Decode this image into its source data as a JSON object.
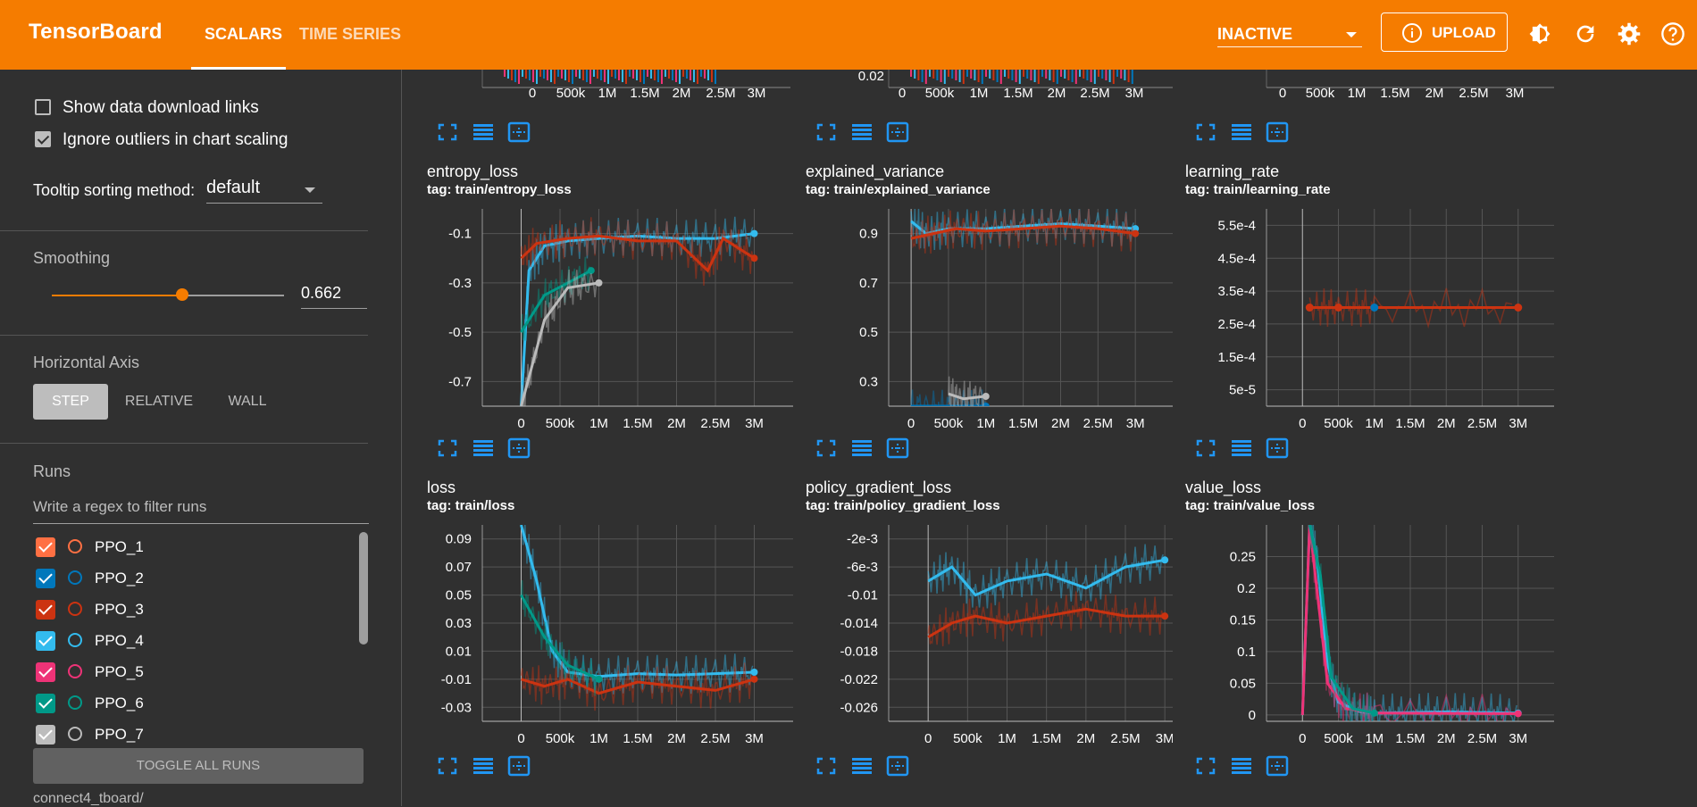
{
  "header": {
    "brand": "TensorBoard",
    "tabs": [
      {
        "label": "SCALARS",
        "active": true
      },
      {
        "label": "TIME SERIES",
        "active": false
      }
    ],
    "run_selector": "INACTIVE",
    "upload_label": "UPLOAD",
    "icons": [
      "upload-icon",
      "brightness-icon",
      "refresh-icon",
      "settings-icon",
      "help-icon"
    ],
    "accent": "#f57c00"
  },
  "sidebar": {
    "show_download_links": {
      "label": "Show data download links",
      "checked": false
    },
    "ignore_outliers": {
      "label": "Ignore outliers in chart scaling",
      "checked": true
    },
    "tooltip_sorting_label": "Tooltip sorting method:",
    "tooltip_sorting_value": "default",
    "smoothing_label": "Smoothing",
    "smoothing_value": "0.662",
    "horizontal_axis_label": "Horizontal Axis",
    "axis_options": [
      "STEP",
      "RELATIVE",
      "WALL"
    ],
    "axis_selected": "STEP",
    "runs_label": "Runs",
    "filter_placeholder": "Write a regex to filter runs",
    "runs": [
      {
        "name": "PPO_1",
        "color": "#ff7043",
        "checked": true
      },
      {
        "name": "PPO_2",
        "color": "#0077bb",
        "checked": true
      },
      {
        "name": "PPO_3",
        "color": "#cc3311",
        "checked": true
      },
      {
        "name": "PPO_4",
        "color": "#33bbee",
        "checked": true
      },
      {
        "name": "PPO_5",
        "color": "#ee3377",
        "checked": true
      },
      {
        "name": "PPO_6",
        "color": "#009988",
        "checked": true
      },
      {
        "name": "PPO_7",
        "color": "#bbbbbb",
        "checked": true
      }
    ],
    "toggle_all_label": "TOGGLE ALL RUNS",
    "logdir": "connect4_tboard/"
  },
  "top_row_partial": [
    {
      "xticks": [
        "0",
        "500k",
        "1M",
        "1.5M",
        "2M",
        "2.5M",
        "3M"
      ],
      "yticks": []
    },
    {
      "xticks": [
        "0",
        "500k",
        "1M",
        "1.5M",
        "2M",
        "2.5M",
        "3M"
      ],
      "yticks": [
        "0.02"
      ]
    },
    {
      "xticks": [
        "0",
        "500k",
        "1M",
        "1.5M",
        "2M",
        "2.5M",
        "3M"
      ],
      "yticks": []
    }
  ],
  "chart_data": [
    {
      "type": "line",
      "title": "entropy_loss",
      "subtitle": "tag: train/entropy_loss",
      "xticks": [
        "0",
        "500k",
        "1M",
        "1.5M",
        "2M",
        "2.5M",
        "3M"
      ],
      "xlim": [
        -500000,
        3500000
      ],
      "yticks": [
        "-0.1",
        "-0.3",
        "-0.5",
        "-0.7"
      ],
      "ytick_values": [
        -0.1,
        -0.3,
        -0.5,
        -0.7
      ],
      "ylim": [
        -0.8,
        0.0
      ],
      "series": [
        {
          "color": "#33bbee",
          "x": [
            0,
            100000,
            300000,
            600000,
            1000000,
            1500000,
            2000000,
            2500000,
            3000000
          ],
          "y": [
            -0.8,
            -0.25,
            -0.15,
            -0.13,
            -0.12,
            -0.11,
            -0.12,
            -0.12,
            -0.1
          ]
        },
        {
          "color": "#cc3311",
          "x": [
            0,
            200000,
            600000,
            1000000,
            1500000,
            2000000,
            2400000,
            2600000,
            3000000
          ],
          "y": [
            -0.2,
            -0.14,
            -0.12,
            -0.11,
            -0.13,
            -0.13,
            -0.25,
            -0.12,
            -0.2
          ]
        },
        {
          "color": "#009988",
          "x": [
            0,
            300000,
            600000,
            900000
          ],
          "y": [
            -0.5,
            -0.35,
            -0.3,
            -0.25
          ]
        },
        {
          "color": "#bbbbbb",
          "x": [
            0,
            300000,
            600000,
            1000000
          ],
          "y": [
            -0.8,
            -0.45,
            -0.32,
            -0.3
          ]
        }
      ]
    },
    {
      "type": "line",
      "title": "explained_variance",
      "subtitle": "tag: train/explained_variance",
      "xticks": [
        "0",
        "500k",
        "1M",
        "1.5M",
        "2M",
        "2.5M",
        "3M"
      ],
      "xlim": [
        -300000,
        3500000
      ],
      "yticks": [
        "0.9",
        "0.7",
        "0.5",
        "0.3"
      ],
      "ytick_values": [
        0.9,
        0.7,
        0.5,
        0.3
      ],
      "ylim": [
        0.2,
        1.0
      ],
      "series": [
        {
          "color": "#33bbee",
          "x": [
            0,
            200000,
            500000,
            1000000,
            1500000,
            2000000,
            2500000,
            3000000
          ],
          "y": [
            0.95,
            0.9,
            0.92,
            0.92,
            0.93,
            0.94,
            0.93,
            0.92
          ]
        },
        {
          "color": "#cc3311",
          "x": [
            0,
            300000,
            600000,
            1000000,
            1500000,
            2000000,
            2500000,
            3000000
          ],
          "y": [
            0.88,
            0.9,
            0.92,
            0.91,
            0.92,
            0.93,
            0.92,
            0.9
          ]
        },
        {
          "color": "#0077bb",
          "x": [
            0,
            400000,
            800000,
            1000000
          ],
          "y": [
            0.2,
            0.2,
            0.2,
            0.2
          ]
        },
        {
          "color": "#bbbbbb",
          "x": [
            500000,
            700000,
            1000000
          ],
          "y": [
            0.25,
            0.23,
            0.24
          ]
        }
      ]
    },
    {
      "type": "line",
      "title": "learning_rate",
      "subtitle": "tag: train/learning_rate",
      "xticks": [
        "0",
        "500k",
        "1M",
        "1.5M",
        "2M",
        "2.5M",
        "3M"
      ],
      "xlim": [
        -500000,
        3500000
      ],
      "yticks": [
        "5.5e-4",
        "4.5e-4",
        "3.5e-4",
        "2.5e-4",
        "1.5e-4",
        "5e-5"
      ],
      "ytick_values": [
        0.00055,
        0.00045,
        0.00035,
        0.00025,
        0.00015,
        5e-05
      ],
      "ylim": [
        0.0,
        0.0006
      ],
      "series": [
        {
          "color": "#cc3311",
          "x": [
            100000,
            500000,
            1000000,
            3000000
          ],
          "y": [
            0.0003,
            0.0003,
            0.0003,
            0.0003
          ]
        }
      ]
    },
    {
      "type": "line",
      "title": "loss",
      "subtitle": "tag: train/loss",
      "xticks": [
        "0",
        "500k",
        "1M",
        "1.5M",
        "2M",
        "2.5M",
        "3M"
      ],
      "xlim": [
        -500000,
        3500000
      ],
      "yticks": [
        "0.09",
        "0.07",
        "0.05",
        "0.03",
        "0.01",
        "-0.01",
        "-0.03"
      ],
      "ytick_values": [
        0.09,
        0.07,
        0.05,
        0.03,
        0.01,
        -0.01,
        -0.03
      ],
      "ylim": [
        -0.04,
        0.1
      ],
      "series": [
        {
          "color": "#33bbee",
          "x": [
            0,
            200000,
            400000,
            600000,
            1000000,
            1500000,
            2000000,
            2500000,
            3000000
          ],
          "y": [
            0.1,
            0.06,
            0.01,
            -0.005,
            -0.008,
            -0.006,
            -0.007,
            -0.006,
            -0.005
          ]
        },
        {
          "color": "#cc3311",
          "x": [
            0,
            300000,
            600000,
            1000000,
            1500000,
            2000000,
            2500000,
            3000000
          ],
          "y": [
            -0.01,
            -0.015,
            -0.01,
            -0.02,
            -0.012,
            -0.015,
            -0.018,
            -0.01
          ]
        },
        {
          "color": "#009988",
          "x": [
            0,
            300000,
            600000,
            1000000
          ],
          "y": [
            0.05,
            0.02,
            0.0,
            -0.01
          ]
        }
      ]
    },
    {
      "type": "line",
      "title": "policy_gradient_loss",
      "subtitle": "tag: train/policy_gradient_loss",
      "xticks": [
        "0",
        "500k",
        "1M",
        "1.5M",
        "2M",
        "2.5M",
        "3M"
      ],
      "xlim": [
        -500000,
        3100000
      ],
      "yticks": [
        "-2e-3",
        "-6e-3",
        "-0.01",
        "-0.014",
        "-0.018",
        "-0.022",
        "-0.026"
      ],
      "ytick_values": [
        -0.002,
        -0.006,
        -0.01,
        -0.014,
        -0.018,
        -0.022,
        -0.026
      ],
      "ylim": [
        -0.028,
        0.0
      ],
      "series": [
        {
          "color": "#33bbee",
          "x": [
            0,
            300000,
            600000,
            1000000,
            1500000,
            2000000,
            2500000,
            3000000
          ],
          "y": [
            -0.008,
            -0.006,
            -0.01,
            -0.008,
            -0.007,
            -0.009,
            -0.006,
            -0.005
          ]
        },
        {
          "color": "#cc3311",
          "x": [
            0,
            300000,
            600000,
            1000000,
            1500000,
            2000000,
            2500000,
            3000000
          ],
          "y": [
            -0.016,
            -0.014,
            -0.013,
            -0.014,
            -0.013,
            -0.012,
            -0.013,
            -0.013
          ]
        }
      ]
    },
    {
      "type": "line",
      "title": "value_loss",
      "subtitle": "tag: train/value_loss",
      "xticks": [
        "0",
        "500k",
        "1M",
        "1.5M",
        "2M",
        "2.5M",
        "3M"
      ],
      "xlim": [
        -500000,
        3500000
      ],
      "yticks": [
        "0.25",
        "0.2",
        "0.15",
        "0.1",
        "0.05",
        "0"
      ],
      "ytick_values": [
        0.25,
        0.2,
        0.15,
        0.1,
        0.05,
        0.0
      ],
      "ylim": [
        -0.01,
        0.3
      ],
      "series": [
        {
          "color": "#33bbee",
          "x": [
            0,
            100000,
            200000,
            350000,
            500000,
            800000,
            1000000,
            1500000,
            2000000,
            2500000,
            3000000
          ],
          "y": [
            0.0,
            0.3,
            0.25,
            0.08,
            0.02,
            0.005,
            0.003,
            0.004,
            0.005,
            0.004,
            0.003
          ]
        },
        {
          "color": "#ee3377",
          "x": [
            0,
            100000,
            200000,
            350000,
            600000,
            1000000,
            3000000
          ],
          "y": [
            0.0,
            0.3,
            0.2,
            0.05,
            0.01,
            0.003,
            0.002
          ]
        },
        {
          "color": "#009988",
          "x": [
            100000,
            250000,
            400000,
            700000,
            1000000
          ],
          "y": [
            0.3,
            0.22,
            0.06,
            0.01,
            0.003
          ]
        }
      ]
    }
  ]
}
